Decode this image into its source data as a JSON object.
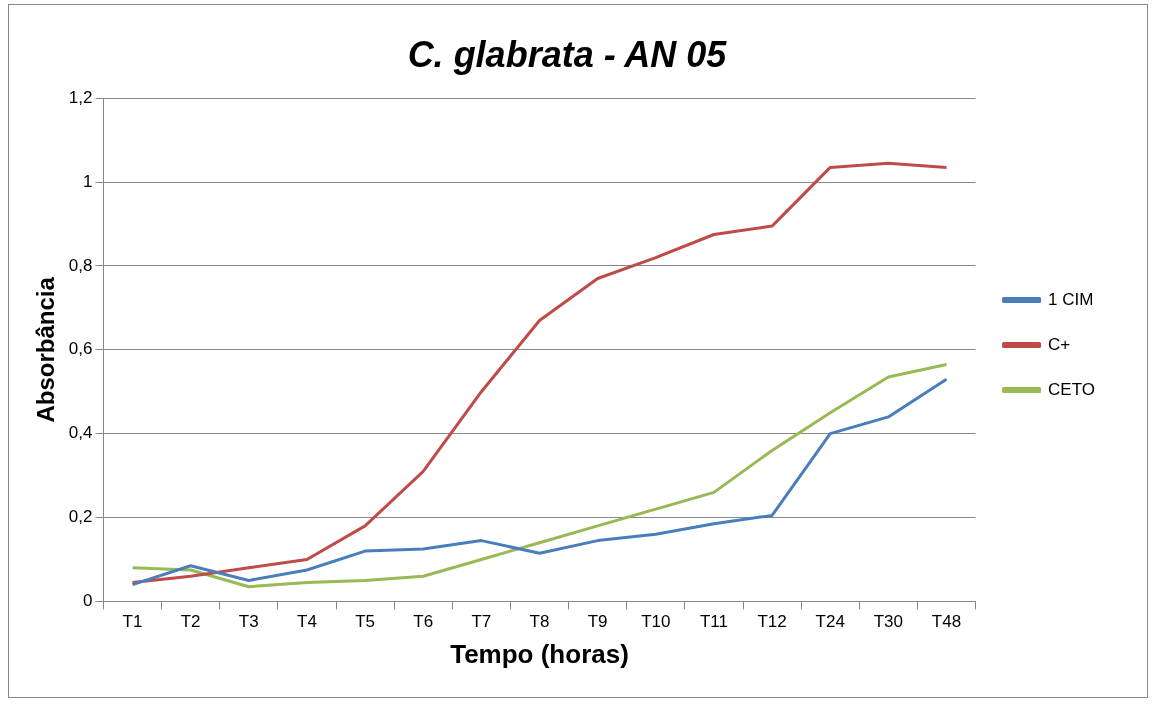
{
  "chart_data": {
    "type": "line",
    "title": "C. glabrata - AN 05",
    "xlabel": "Tempo (horas)",
    "ylabel": "Absorbância",
    "categories": [
      "T1",
      "T2",
      "T3",
      "T4",
      "T5",
      "T6",
      "T7",
      "T8",
      "T9",
      "T10",
      "T11",
      "T12",
      "T24",
      "T30",
      "T48"
    ],
    "series": [
      {
        "name": "1 CIM",
        "color": "#4a7ebb",
        "values": [
          0.04,
          0.085,
          0.05,
          0.075,
          0.12,
          0.125,
          0.145,
          0.115,
          0.145,
          0.16,
          0.185,
          0.205,
          0.4,
          0.44,
          0.53
        ]
      },
      {
        "name": "C+",
        "color": "#be4b48",
        "values": [
          0.045,
          0.06,
          0.08,
          0.1,
          0.18,
          0.31,
          0.5,
          0.67,
          0.77,
          0.82,
          0.875,
          0.895,
          1.035,
          1.045,
          1.035
        ]
      },
      {
        "name": "CETO",
        "color": "#98b954",
        "values": [
          0.08,
          0.075,
          0.035,
          0.045,
          0.05,
          0.06,
          0.1,
          0.14,
          0.18,
          0.22,
          0.26,
          0.36,
          0.45,
          0.535,
          0.565
        ]
      }
    ],
    "ylim": [
      0,
      1.2
    ],
    "yticks": [
      0,
      {
        "value": 0.2,
        "label": "0,2"
      },
      {
        "value": 0.4,
        "label": "0,4"
      },
      {
        "value": 0.6,
        "label": "0,6"
      },
      {
        "value": 0.8,
        "label": "0,8"
      },
      1,
      {
        "value": 1.2,
        "label": "1,2"
      }
    ],
    "grid": "y",
    "legend": "right",
    "marker": "none",
    "line_style": "solid"
  }
}
